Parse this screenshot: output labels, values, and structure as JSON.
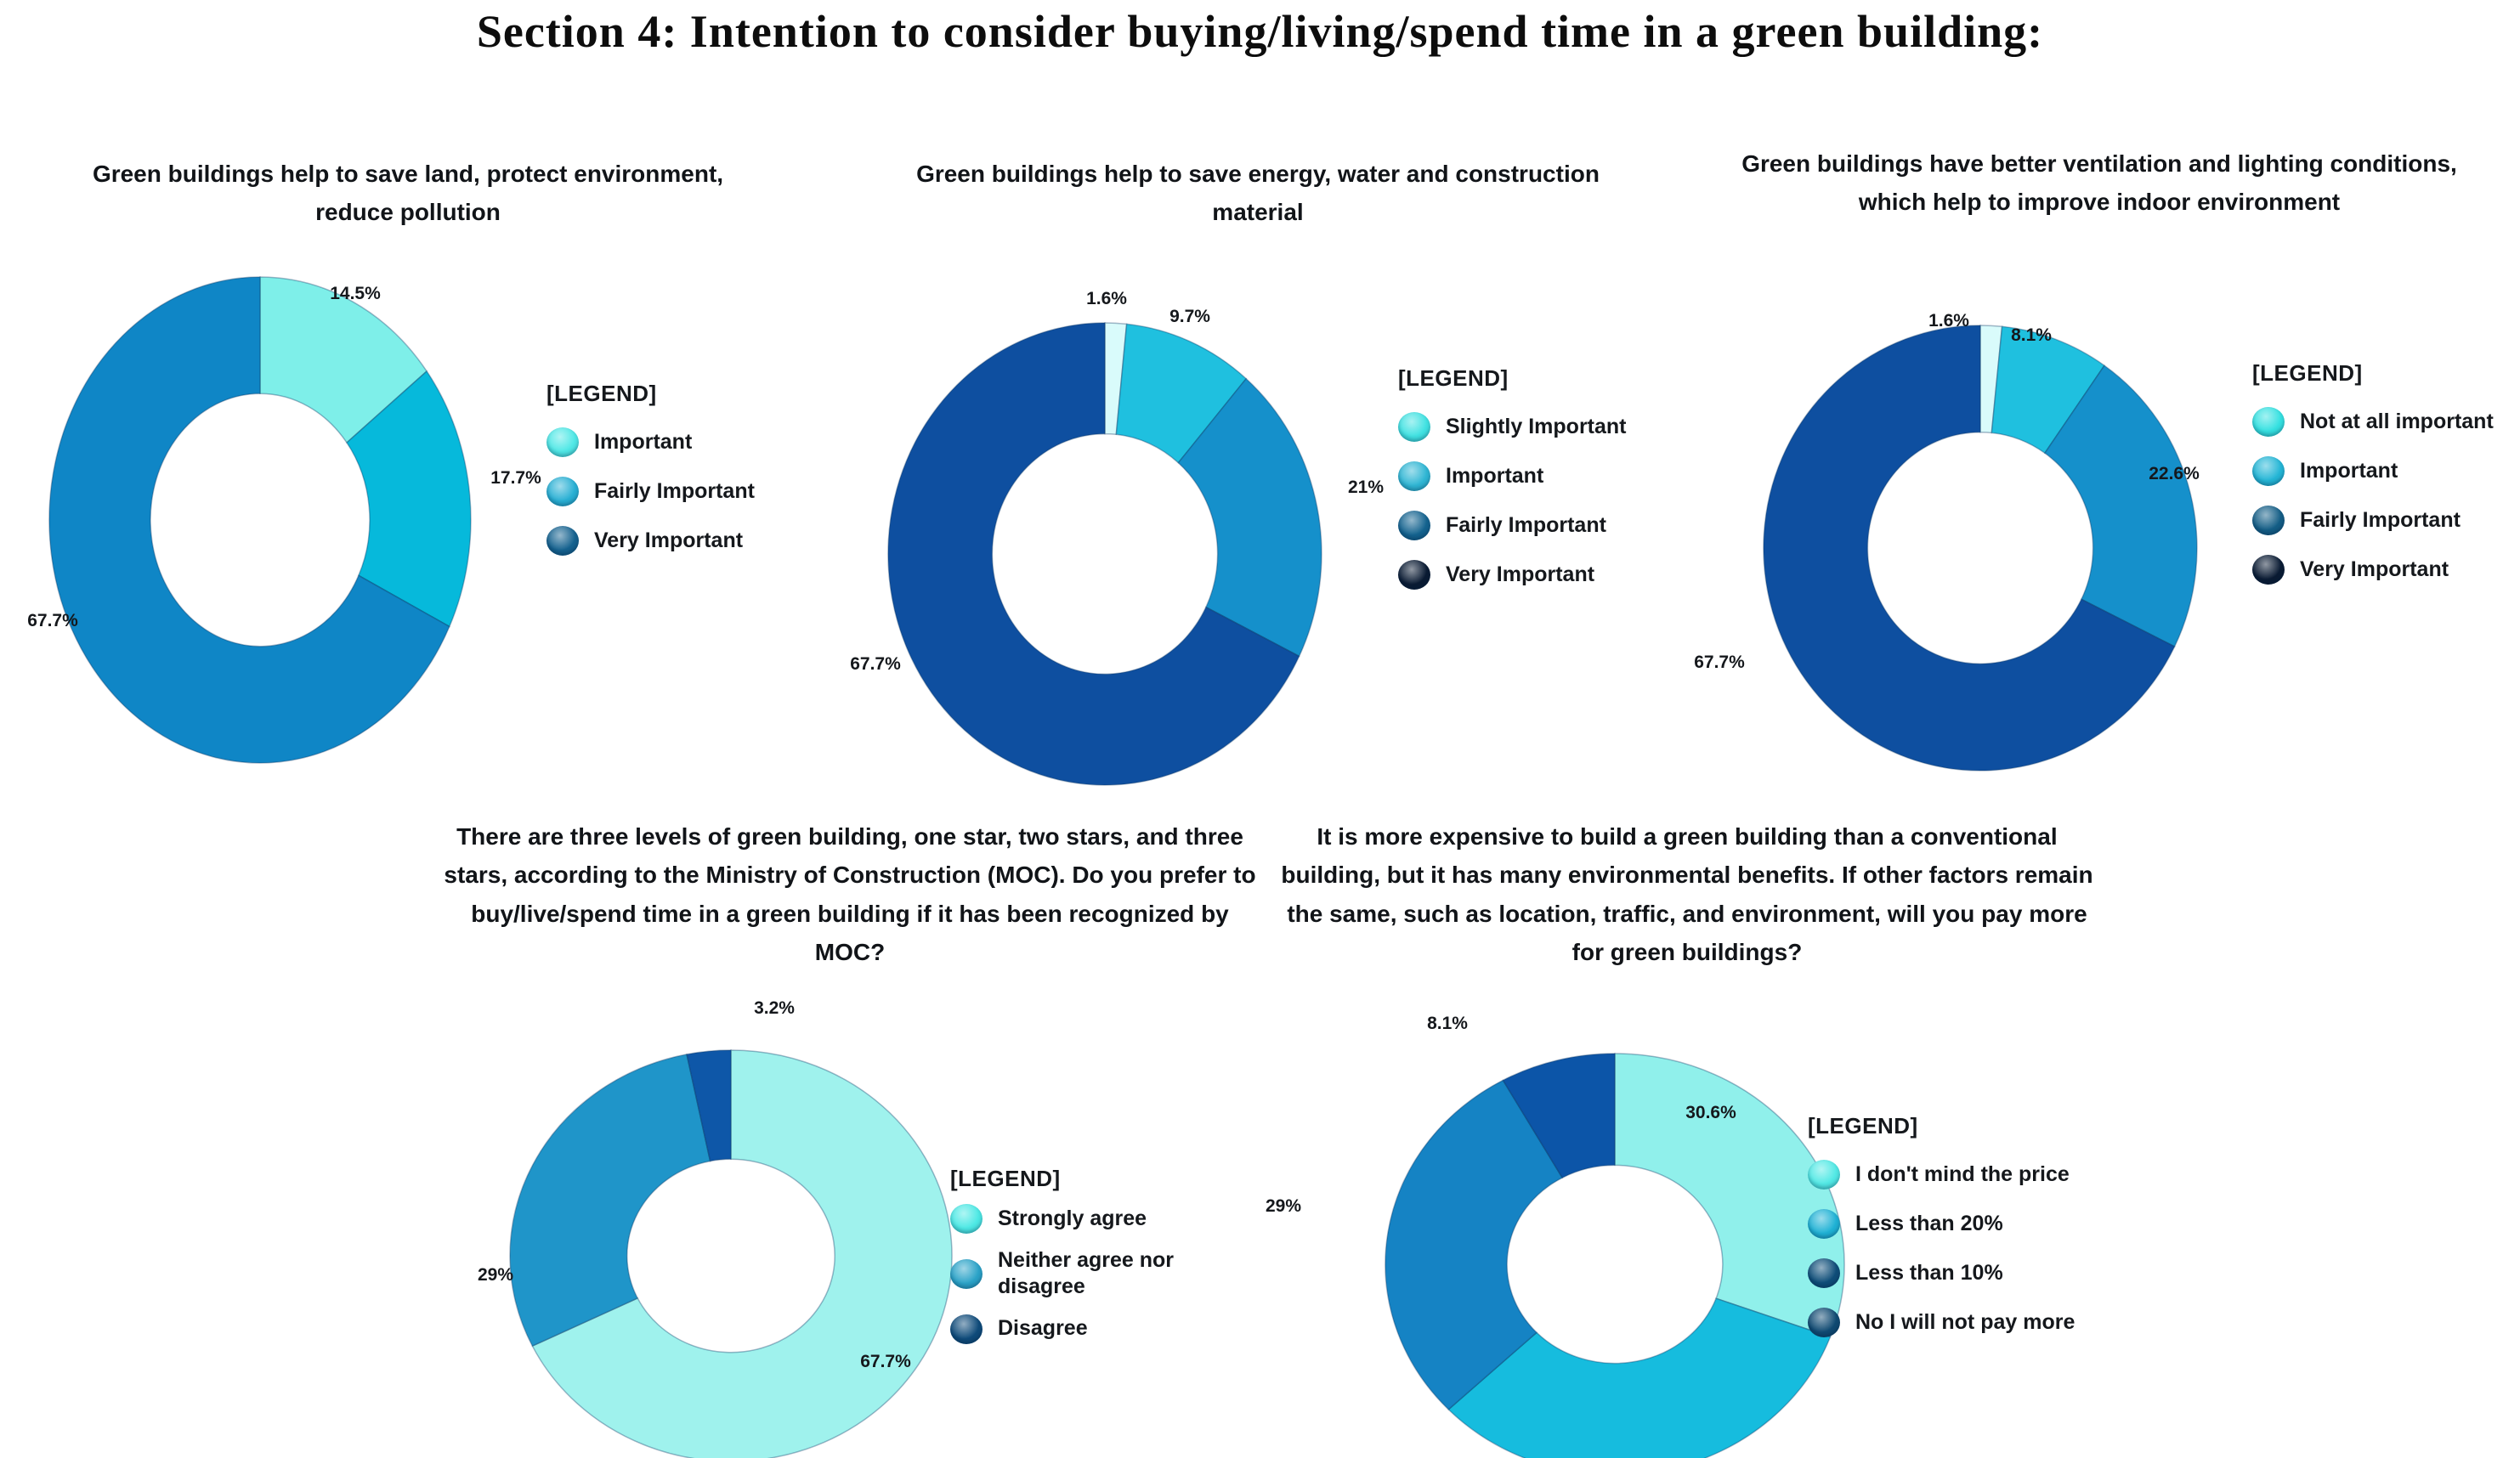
{
  "page_title": "Section 4: Intention to consider buying/living/spend time in a green building:",
  "legend_header": "[LEGEND]",
  "chart_data": [
    {
      "type": "pie",
      "donut": true,
      "start_angle": "12-oclock",
      "direction": "clockwise",
      "title": "Green buildings help to save land, protect environment, reduce pollution",
      "series": [
        {
          "label": "Important",
          "value": 14.5,
          "pct_label": "14.5%",
          "slice_color": "#7eefe9",
          "legend_color": "#4fe8e6"
        },
        {
          "label": "Fairly Important",
          "value": 17.7,
          "pct_label": "17.7%",
          "slice_color": "#06b9db",
          "legend_color": "#29b0d4"
        },
        {
          "label": "Very Important",
          "value": 67.7,
          "pct_label": "67.7%",
          "slice_color": "#0f86c6",
          "legend_color": "#15628f"
        }
      ]
    },
    {
      "type": "pie",
      "donut": true,
      "start_angle": "12-oclock",
      "direction": "clockwise",
      "title": "Green buildings help to save energy, water and construction material",
      "series": [
        {
          "label": "Slightly Important",
          "value": 1.6,
          "pct_label": "1.6%",
          "slice_color": "#d9fbfb",
          "legend_color": "#40e2e2"
        },
        {
          "label": "Important",
          "value": 9.7,
          "pct_label": "9.7%",
          "slice_color": "#1fc0df",
          "legend_color": "#2fb6d4"
        },
        {
          "label": "Fairly Important",
          "value": 21,
          "pct_label": "21%",
          "slice_color": "#1590cb",
          "legend_color": "#14638f"
        },
        {
          "label": "Very Important",
          "value": 67.7,
          "pct_label": "67.7%",
          "slice_color": "#0e4fa0",
          "legend_color": "#0a1b33"
        }
      ]
    },
    {
      "type": "pie",
      "donut": true,
      "start_angle": "12-oclock",
      "direction": "clockwise",
      "title": "Green buildings have better ventilation and lighting conditions, which help to improve indoor environment",
      "series": [
        {
          "label": "Not at all important",
          "value": 1.6,
          "pct_label": "1.6%",
          "slice_color": "#d9fbfb",
          "legend_color": "#35e1e1"
        },
        {
          "label": "Important",
          "value": 8.1,
          "pct_label": "8.1%",
          "slice_color": "#1fc0df",
          "legend_color": "#24b6d6"
        },
        {
          "label": "Fairly Important",
          "value": 22.6,
          "pct_label": "22.6%",
          "slice_color": "#1590cb",
          "legend_color": "#145e86"
        },
        {
          "label": "Very Important",
          "value": 67.7,
          "pct_label": "67.7%",
          "slice_color": "#0e4fa0",
          "legend_color": "#0a1b33"
        }
      ]
    },
    {
      "type": "pie",
      "donut": true,
      "start_angle": "12-oclock",
      "direction": "clockwise",
      "title": "There are three levels of green building, one star, two stars, and three stars, according to the Ministry of Construction (MOC). Do you prefer to buy/live/spend time in a green building if it has been recognized by MOC?",
      "series": [
        {
          "label": "Strongly agree",
          "value": 67.7,
          "pct_label": "67.7%",
          "slice_color": "#9ff2ed",
          "legend_color": "#4de9e5"
        },
        {
          "label": "Neither agree nor disagree",
          "value": 29,
          "pct_label": "29%",
          "slice_color": "#1f95c9",
          "legend_color": "#2ba3c8"
        },
        {
          "label": "Disagree",
          "value": 3.2,
          "pct_label": "3.2%",
          "slice_color": "#0e57a8",
          "legend_color": "#0f4b7a"
        }
      ]
    },
    {
      "type": "pie",
      "donut": true,
      "start_angle": "12-oclock",
      "direction": "clockwise",
      "title": "It is more expensive to build a green building than a conventional building, but it has many environmental benefits. If other factors remain the same, such as location, traffic, and environment, will you pay more for green buildings?",
      "series": [
        {
          "label": "I don't mind the price",
          "value": 30.6,
          "pct_label": "30.6%",
          "slice_color": "#90f0eb",
          "legend_color": "#52e9e5"
        },
        {
          "label": "Less than 20%",
          "value": 32.3,
          "pct_label": null,
          "slice_color": "#16bcde",
          "legend_color": "#1fb2d5"
        },
        {
          "label": "Less than 10%",
          "value": 29,
          "pct_label": "29%",
          "slice_color": "#1583c4",
          "legend_color": "#0f4e79"
        },
        {
          "label": "No I will not pay more",
          "value": 8.1,
          "pct_label": "8.1%",
          "slice_color": "#0c55a8",
          "legend_color": "#104a72"
        }
      ]
    }
  ]
}
